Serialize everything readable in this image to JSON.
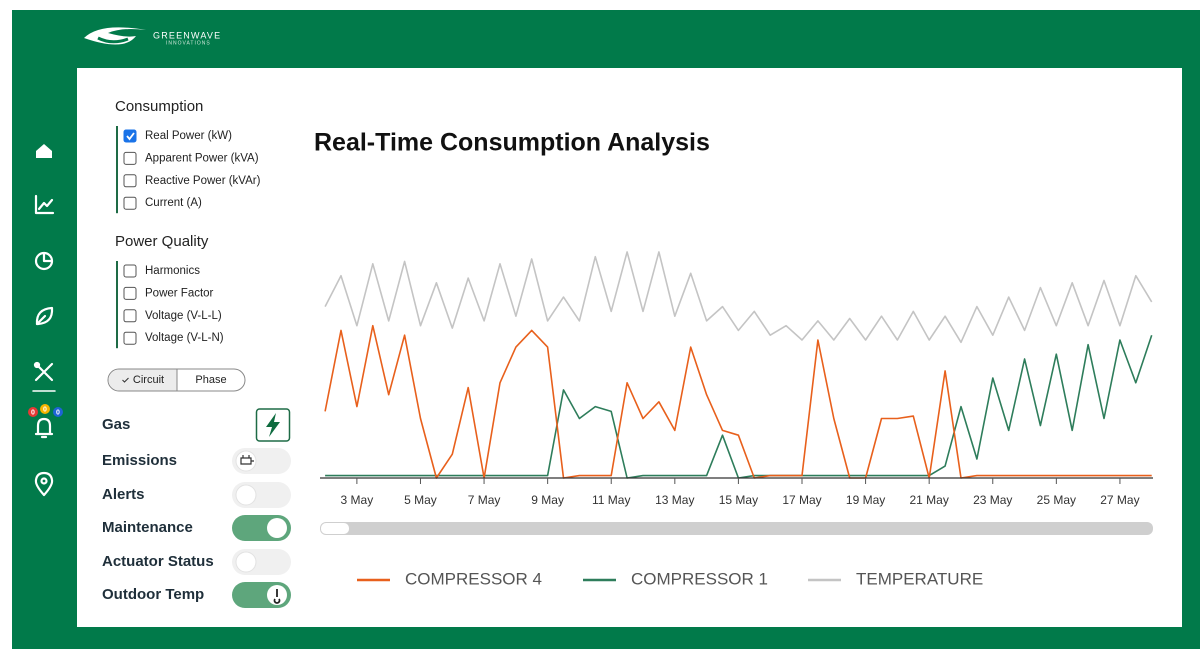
{
  "header": {
    "brand": "GREENWAVE",
    "tagline": "INNOVATIONS"
  },
  "nav": {
    "alert_badges": [
      {
        "count": 0,
        "color": "#e53935"
      },
      {
        "count": 0,
        "color": "#f5b400"
      },
      {
        "count": 0,
        "color": "#1e63d6"
      }
    ]
  },
  "filters": {
    "consumption": {
      "title": "Consumption",
      "options": [
        {
          "label": "Real Power (kW)",
          "checked": true
        },
        {
          "label": "Apparent Power (kVA)",
          "checked": false
        },
        {
          "label": "Reactive Power (kVAr)",
          "checked": false
        },
        {
          "label": "Current (A)",
          "checked": false
        }
      ]
    },
    "power_quality": {
      "title": "Power Quality",
      "options": [
        {
          "label": "Harmonics",
          "checked": false
        },
        {
          "label": "Power Factor",
          "checked": false
        },
        {
          "label": "Voltage (V-L-L)",
          "checked": false
        },
        {
          "label": "Voltage (V-L-N)",
          "checked": false
        }
      ]
    },
    "view": {
      "options": [
        "Circuit",
        "Phase"
      ],
      "selected": 0
    }
  },
  "toggles": [
    {
      "label": "Gas",
      "control": "button",
      "on": true,
      "icon": "bolt"
    },
    {
      "label": "Emissions",
      "control": "switch",
      "on": false,
      "icon": "plug"
    },
    {
      "label": "Alerts",
      "control": "switch",
      "on": false
    },
    {
      "label": "Maintenance",
      "control": "switch",
      "on": true
    },
    {
      "label": "Actuator Status",
      "control": "switch",
      "on": false
    },
    {
      "label": "Outdoor Temp",
      "control": "switch",
      "on": true,
      "icon": "thermometer"
    }
  ],
  "chart_data": {
    "type": "line",
    "title": "Real-Time Consumption Analysis",
    "x": [
      2,
      2.5,
      3,
      3.5,
      4,
      4.5,
      5,
      5.5,
      6,
      6.5,
      7,
      7.5,
      8,
      8.5,
      9,
      9.5,
      10,
      10.5,
      11,
      11.5,
      12,
      12.5,
      13,
      13.5,
      14,
      14.5,
      15,
      15.5,
      16,
      16.5,
      17,
      17.5,
      18,
      18.5,
      19,
      19.5,
      20,
      20.5,
      21,
      21.5,
      22,
      22.5,
      23,
      23.5,
      24,
      24.5,
      25,
      25.5,
      26,
      26.5,
      27,
      27.5,
      28
    ],
    "xlim": [
      1.84,
      28.04
    ],
    "xticks": [
      {
        "value": 3,
        "label": "3 May"
      },
      {
        "value": 5,
        "label": "5 May"
      },
      {
        "value": 7,
        "label": "7 May"
      },
      {
        "value": 9,
        "label": "9 May"
      },
      {
        "value": 11,
        "label": "11 May"
      },
      {
        "value": 13,
        "label": "13 May"
      },
      {
        "value": 15,
        "label": "15 May"
      },
      {
        "value": 17,
        "label": "17 May"
      },
      {
        "value": 19,
        "label": "19 May"
      },
      {
        "value": 21,
        "label": "21 May"
      },
      {
        "value": 23,
        "label": "23 May"
      },
      {
        "value": 25,
        "label": "25 May"
      },
      {
        "value": 27,
        "label": "27 May"
      }
    ],
    "ylim": [
      0,
      100
    ],
    "legend": "bottom",
    "series": [
      {
        "name": "COMPRESSOR 4",
        "color": "#e8601c",
        "values": [
          28,
          62,
          30,
          64,
          35,
          60,
          25,
          0,
          10,
          38,
          0,
          40,
          55,
          62,
          55,
          0,
          1,
          1,
          1,
          40,
          25,
          32,
          20,
          55,
          35,
          20,
          18,
          0,
          1,
          1,
          1,
          58,
          25,
          0,
          0,
          25,
          25,
          26,
          0,
          45,
          0,
          1,
          1,
          1,
          1,
          1,
          1,
          1,
          1,
          1,
          1,
          1,
          1
        ]
      },
      {
        "name": "COMPRESSOR 1",
        "color": "#2e7d5b",
        "values": [
          1,
          1,
          1,
          1,
          1,
          1,
          1,
          1,
          1,
          1,
          1,
          1,
          1,
          1,
          1,
          37,
          25,
          30,
          28,
          0,
          1,
          1,
          1,
          1,
          1,
          18,
          0,
          1,
          1,
          1,
          1,
          1,
          1,
          1,
          1,
          1,
          1,
          1,
          1,
          5,
          30,
          8,
          42,
          20,
          50,
          22,
          52,
          20,
          56,
          25,
          58,
          40,
          60
        ]
      },
      {
        "name": "TEMPERATURE",
        "color": "#c4c4c4",
        "values": [
          72,
          85,
          64,
          90,
          66,
          91,
          64,
          82,
          63,
          84,
          66,
          90,
          68,
          92,
          66,
          76,
          66,
          93,
          70,
          95,
          70,
          95,
          68,
          86,
          66,
          72,
          62,
          70,
          60,
          64,
          58,
          66,
          58,
          67,
          58,
          68,
          58,
          70,
          58,
          68,
          57,
          72,
          60,
          76,
          62,
          80,
          64,
          82,
          64,
          83,
          64,
          85,
          74
        ]
      }
    ]
  }
}
